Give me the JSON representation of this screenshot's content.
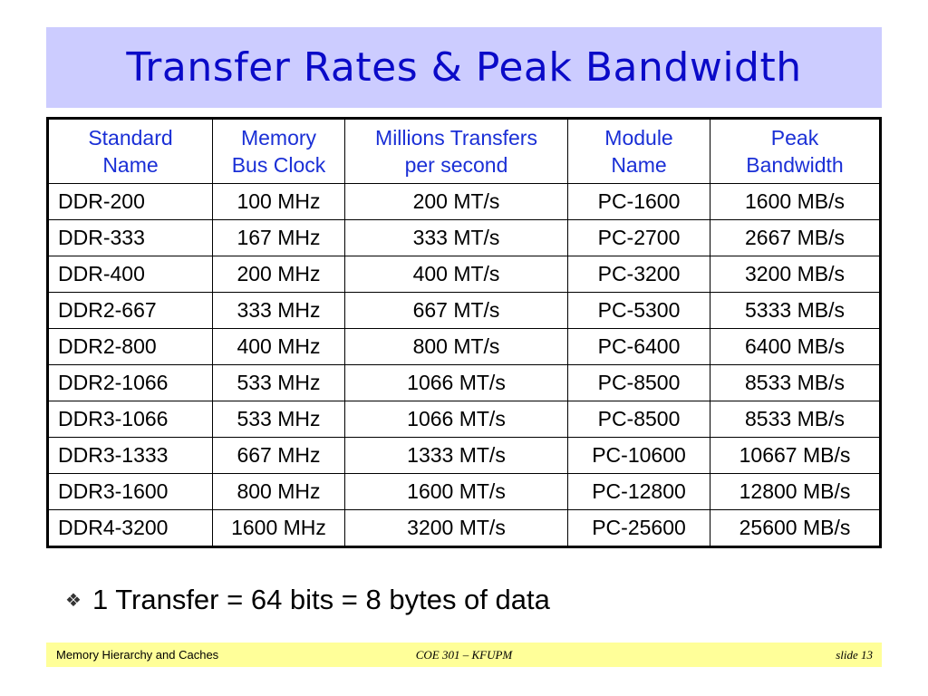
{
  "slide": {
    "title": "Transfer Rates & Peak Bandwidth",
    "title_color": "#0a0ac8",
    "title_bar_color": "#ccccff"
  },
  "table": {
    "headers": [
      {
        "line1": "Standard",
        "line2": "Name"
      },
      {
        "line1": "Memory",
        "line2": "Bus Clock"
      },
      {
        "line1": "Millions Transfers",
        "line2": "per second"
      },
      {
        "line1": "Module",
        "line2": "Name"
      },
      {
        "line1": "Peak",
        "line2": "Bandwidth"
      }
    ],
    "header_color": "#1a2fd6",
    "rows": [
      [
        "DDR-200",
        "100 MHz",
        "200 MT/s",
        "PC-1600",
        "1600 MB/s"
      ],
      [
        "DDR-333",
        "167 MHz",
        "333 MT/s",
        "PC-2700",
        "2667 MB/s"
      ],
      [
        "DDR-400",
        "200 MHz",
        "400 MT/s",
        "PC-3200",
        "3200 MB/s"
      ],
      [
        "DDR2-667",
        "333 MHz",
        "667 MT/s",
        "PC-5300",
        "5333 MB/s"
      ],
      [
        "DDR2-800",
        "400 MHz",
        "800 MT/s",
        "PC-6400",
        "6400 MB/s"
      ],
      [
        "DDR2-1066",
        "533 MHz",
        "1066 MT/s",
        "PC-8500",
        "8533 MB/s"
      ],
      [
        "DDR3-1066",
        "533 MHz",
        "1066 MT/s",
        "PC-8500",
        "8533 MB/s"
      ],
      [
        "DDR3-1333",
        "667 MHz",
        "1333 MT/s",
        "PC-10600",
        "10667 MB/s"
      ],
      [
        "DDR3-1600",
        "800 MHz",
        "1600 MT/s",
        "PC-12800",
        "12800 MB/s"
      ],
      [
        "DDR4-3200",
        "1600 MHz",
        "3200 MT/s",
        "PC-25600",
        "25600 MB/s"
      ]
    ]
  },
  "note": {
    "bullet_icon": "diamond-bullet-icon",
    "text": "1 Transfer = 64 bits = 8 bytes of data"
  },
  "footer": {
    "left": "Memory Hierarchy and Caches",
    "center": "COE 301 – KFUPM",
    "right": "slide 13",
    "background": "#ffff99"
  }
}
